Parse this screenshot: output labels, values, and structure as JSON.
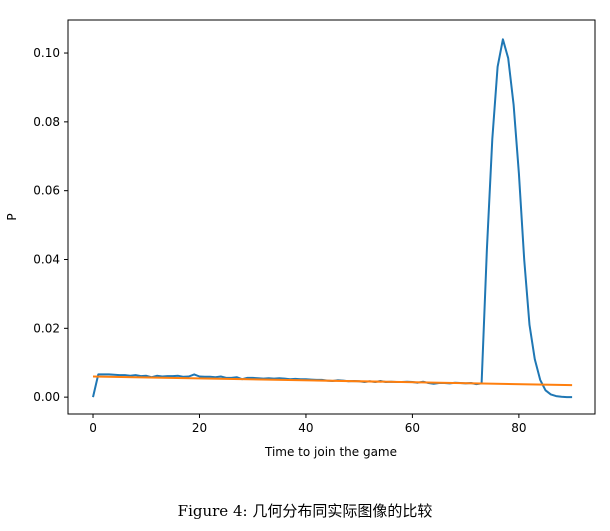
{
  "chart_data": {
    "type": "line",
    "title": "",
    "xlabel": "Time to join the game",
    "ylabel": "P",
    "xlim": [
      -4.7,
      94.3
    ],
    "ylim": [
      -0.0049,
      0.1096
    ],
    "xticks": [
      0,
      20,
      40,
      60,
      80
    ],
    "xtick_labels": [
      "0",
      "20",
      "40",
      "60",
      "80"
    ],
    "yticks": [
      0,
      0.02,
      0.04,
      0.06,
      0.08,
      0.1
    ],
    "ytick_labels": [
      "0.00",
      "0.02",
      "0.04",
      "0.06",
      "0.08",
      "0.10"
    ],
    "grid": false,
    "series": [
      {
        "color": "#1f77b4",
        "x_start": 0,
        "x_step": 1,
        "values": [
          0,
          0.0066,
          0.0066,
          0.0066,
          0.0065,
          0.0064,
          0.0064,
          0.0062,
          0.0064,
          0.0061,
          0.0062,
          0.0058,
          0.0062,
          0.006,
          0.0061,
          0.0061,
          0.0062,
          0.0059,
          0.006,
          0.0066,
          0.006,
          0.0059,
          0.0059,
          0.0058,
          0.006,
          0.0056,
          0.0056,
          0.0058,
          0.0052,
          0.0056,
          0.0056,
          0.0055,
          0.0054,
          0.0055,
          0.0054,
          0.0055,
          0.0054,
          0.0052,
          0.0053,
          0.0052,
          0.0052,
          0.0051,
          0.005,
          0.005,
          0.0048,
          0.0047,
          0.0049,
          0.0048,
          0.0046,
          0.0047,
          0.0046,
          0.0044,
          0.0046,
          0.0044,
          0.0047,
          0.0044,
          0.0045,
          0.0044,
          0.0044,
          0.0045,
          0.0044,
          0.0042,
          0.0045,
          0.0041,
          0.0039,
          0.0041,
          0.0041,
          0.004,
          0.0042,
          0.0041,
          0.004,
          0.0041,
          0.0038,
          0.004,
          0.043,
          0.075,
          0.096,
          0.104,
          0.0985,
          0.085,
          0.065,
          0.04,
          0.021,
          0.011,
          0.005,
          0.002,
          0.0008,
          0.0003,
          0.0001,
          0,
          0
        ]
      },
      {
        "color": "#ff7f0e",
        "x": [
          0,
          90
        ],
        "values": [
          0.006,
          0.0035
        ]
      }
    ]
  },
  "caption": "Figure 4:  几何分布同实际图像的比较"
}
